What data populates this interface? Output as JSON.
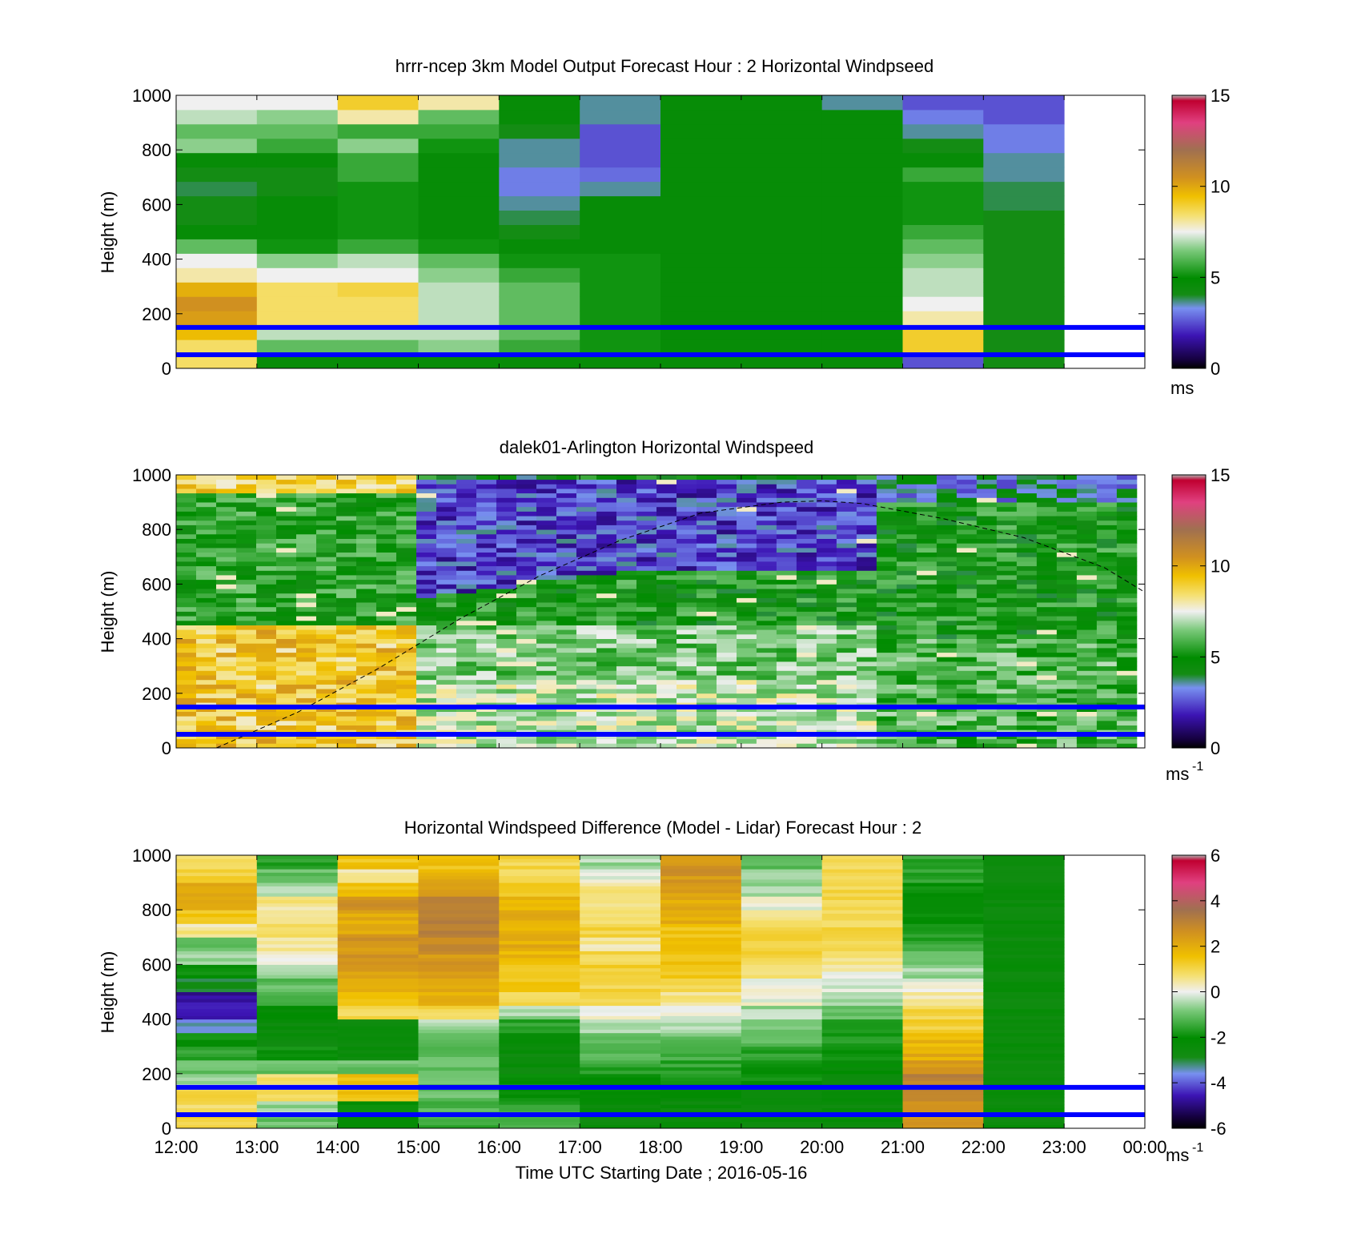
{
  "time_axis": {
    "label": "Time UTC  Starting Date ; 2016-05-16",
    "tick_labels": [
      "12:00",
      "13:00",
      "14:00",
      "15:00",
      "16:00",
      "17:00",
      "18:00",
      "19:00",
      "20:00",
      "21:00",
      "22:00",
      "23:00",
      "00:00"
    ]
  },
  "height_axis": {
    "label": "Height (m)",
    "tick_labels": [
      "0",
      "200",
      "400",
      "600",
      "800",
      "1000"
    ]
  },
  "reference_lines_m": [
    50,
    150
  ],
  "reference_line_color": "#0000ff",
  "colormap_colors": [
    "#8c8c8c",
    "#14003c",
    "#3c14b4",
    "#7890f0",
    "#148c14",
    "#008c00",
    "#78c878",
    "#f0f0f0",
    "#f0c000",
    "#d09020",
    "#a07050",
    "#e04080",
    "#b0b0b0"
  ],
  "chart_data": [
    {
      "type": "heatmap",
      "title": "hrrr-ncep 3km Model Output   Forecast Hour : 2 Horizontal Windpseed",
      "xlabel": "",
      "ylabel": "Height (m)",
      "xlim": [
        12,
        24
      ],
      "ylim": [
        0,
        1000
      ],
      "colorbar": {
        "range": [
          0,
          15
        ],
        "ticks": [
          "0",
          "5",
          "10",
          "15"
        ],
        "unit": "ms"
      },
      "description_values": {
        "x_start_hours": [
          12,
          13,
          14,
          15,
          16,
          17,
          18,
          19,
          20,
          21,
          22
        ],
        "data_end_hour": 23,
        "columns_ms_low_to_high": [
          [
            8.5,
            8.5,
            9.5,
            10.2,
            10.5,
            9.8,
            8.0,
            7.5,
            6.0,
            4.5,
            4.0,
            4.0,
            3.8,
            4.0,
            4.5,
            6.5,
            6.0,
            7.0,
            7.5
          ],
          [
            4.5,
            6.0,
            7.0,
            8.5,
            8.5,
            8.5,
            7.5,
            6.5,
            5.0,
            4.5,
            4.5,
            4.5,
            4.0,
            4.0,
            4.5,
            5.5,
            6.0,
            6.5,
            7.5
          ],
          [
            4.5,
            6.0,
            7.0,
            8.5,
            8.5,
            8.8,
            7.5,
            7.0,
            5.5,
            5.0,
            5.0,
            5.0,
            5.0,
            5.5,
            5.5,
            6.5,
            5.5,
            8.0,
            9.0
          ],
          [
            4.5,
            6.5,
            7.0,
            7.0,
            7.0,
            7.0,
            6.5,
            6.0,
            5.0,
            4.5,
            4.5,
            4.5,
            4.5,
            4.5,
            4.5,
            5.0,
            5.5,
            6.0,
            8.0
          ],
          [
            4.5,
            5.5,
            6.0,
            6.0,
            6.0,
            6.0,
            5.5,
            5.0,
            4.5,
            4.0,
            3.8,
            3.5,
            3.0,
            3.0,
            3.5,
            3.5,
            4.0,
            4.5,
            4.5
          ],
          [
            4.5,
            5.0,
            5.0,
            5.0,
            5.0,
            5.0,
            5.0,
            5.0,
            4.5,
            4.5,
            4.5,
            4.5,
            3.5,
            2.8,
            2.5,
            2.5,
            2.5,
            3.5,
            3.5
          ],
          [
            4.5,
            4.5,
            4.5,
            4.5,
            4.5,
            4.5,
            4.5,
            4.5,
            4.5,
            4.5,
            4.5,
            4.5,
            4.5,
            4.5,
            4.5,
            4.5,
            4.5,
            4.5,
            4.5
          ],
          [
            4.5,
            4.5,
            4.5,
            4.5,
            4.5,
            4.5,
            4.5,
            4.5,
            4.5,
            4.5,
            4.5,
            4.5,
            4.5,
            4.5,
            4.5,
            4.5,
            4.5,
            4.5,
            4.5
          ],
          [
            4.5,
            4.5,
            4.5,
            4.5,
            4.5,
            4.5,
            4.5,
            4.5,
            4.5,
            4.5,
            4.5,
            4.5,
            4.5,
            4.5,
            4.5,
            4.5,
            4.5,
            4.5,
            3.5
          ],
          [
            2.5,
            9.0,
            9.0,
            8.0,
            7.5,
            7.0,
            7.0,
            6.5,
            6.0,
            5.5,
            5.0,
            5.0,
            5.0,
            5.5,
            4.5,
            4.0,
            3.5,
            3.0,
            2.5
          ],
          [
            4.0,
            4.0,
            4.0,
            4.0,
            4.0,
            4.0,
            4.0,
            4.0,
            4.0,
            4.0,
            4.0,
            3.8,
            3.8,
            3.5,
            3.5,
            3.0,
            3.0,
            2.5,
            2.5
          ]
        ]
      }
    },
    {
      "type": "heatmap",
      "title": "dalek01-Arlington  Horizontal Windspeed",
      "xlabel": "",
      "ylabel": "Height (m)",
      "xlim": [
        12,
        24
      ],
      "ylim": [
        0,
        1000
      ],
      "colorbar": {
        "range": [
          0,
          15
        ],
        "ticks": [
          "0",
          "5",
          "10",
          "15"
        ],
        "unit": "ms",
        "unit_exponent": "-1"
      },
      "overlay_curve": {
        "style": "dashed",
        "color": "#000000",
        "x_hours": [
          12.5,
          13.5,
          14.5,
          15.5,
          16.5,
          17.5,
          18.5,
          19.5,
          20.0,
          20.5,
          21.5,
          22.5,
          23.5,
          24.0
        ],
        "height_m": [
          0,
          130,
          290,
          470,
          630,
          760,
          860,
          900,
          905,
          895,
          840,
          770,
          660,
          570
        ]
      },
      "description_values": {
        "x_range_hours": [
          12,
          23.9
        ],
        "note": "lidar windspeed profile, 48 columns"
      }
    },
    {
      "type": "heatmap",
      "title": "Horizontal Windspeed Difference (Model - Lidar) Forecast Hour : 2",
      "xlabel": "Time UTC  Starting Date ; 2016-05-16",
      "ylabel": "Height (m)",
      "xlim": [
        12,
        24
      ],
      "ylim": [
        0,
        1000
      ],
      "colorbar": {
        "range": [
          -6,
          6
        ],
        "ticks": [
          "-6",
          "-4",
          "-2",
          "0",
          "2",
          "4",
          "6"
        ],
        "unit": "ms",
        "unit_exponent": "-1"
      },
      "description_values": {
        "x_start_hours": [
          12,
          13,
          14,
          15,
          16,
          17,
          18,
          19,
          20,
          21,
          22
        ],
        "data_end_hour": 23,
        "columns_ms_low_to_high": [
          [
            1.0,
            0.8,
            1.0,
            -0.5,
            -1.0,
            -1.5,
            -2.0,
            -3.5,
            -4.5,
            -4.8,
            -3.0,
            -2.0,
            -0.5,
            -1.0,
            0.5,
            1.5,
            2.2,
            2.0,
            1.2,
            0.8
          ],
          [
            -1.0,
            -0.5,
            0.8,
            0.6,
            -1.0,
            -2.0,
            -2.5,
            -2.5,
            -2.0,
            -1.5,
            -1.0,
            -0.5,
            0.0,
            0.5,
            0.8,
            0.6,
            0.5,
            -0.5,
            -1.0,
            -1.5
          ],
          [
            -2.0,
            -2.0,
            1.5,
            1.5,
            -1.0,
            -2.5,
            -2.5,
            -2.5,
            1.0,
            1.5,
            2.0,
            2.2,
            2.5,
            2.5,
            2.2,
            2.0,
            2.5,
            1.5,
            0.5,
            1.5
          ],
          [
            -1.5,
            -1.2,
            -1.0,
            -1.0,
            -1.0,
            -1.0,
            -1.0,
            -0.5,
            1.0,
            2.0,
            2.0,
            2.5,
            2.5,
            2.8,
            3.0,
            3.0,
            3.0,
            2.5,
            2.0,
            1.5
          ],
          [
            -1.5,
            -1.5,
            -2.0,
            -2.0,
            -2.5,
            -2.5,
            -2.5,
            -1.5,
            -0.5,
            1.0,
            1.5,
            1.5,
            1.8,
            2.0,
            2.0,
            2.0,
            1.8,
            1.5,
            1.0,
            1.0
          ],
          [
            -2.5,
            -2.5,
            -2.0,
            -2.0,
            -1.5,
            -1.2,
            -1.0,
            -0.5,
            0.0,
            0.8,
            1.0,
            1.2,
            1.0,
            0.5,
            1.0,
            0.8,
            0.5,
            0.5,
            0.0,
            -0.5
          ],
          [
            -2.5,
            -2.5,
            -2.0,
            -1.8,
            -1.5,
            -1.2,
            -1.0,
            -0.5,
            0.0,
            0.5,
            1.0,
            1.5,
            1.5,
            1.5,
            1.5,
            2.0,
            2.0,
            2.2,
            2.5,
            2.5
          ],
          [
            -2.5,
            -2.5,
            -2.5,
            -2.0,
            -2.0,
            -1.5,
            -1.2,
            -0.8,
            -0.5,
            0.0,
            0.0,
            0.5,
            1.0,
            1.0,
            1.0,
            0.5,
            0.0,
            -0.5,
            -0.5,
            -1.0
          ],
          [
            -2.5,
            -2.5,
            -2.5,
            -2.5,
            -2.2,
            -2.0,
            -1.8,
            -1.5,
            -1.0,
            -0.5,
            -0.2,
            0.2,
            0.5,
            0.8,
            1.0,
            1.0,
            1.0,
            1.0,
            1.0,
            1.0
          ],
          [
            2.5,
            2.5,
            3.0,
            3.0,
            2.5,
            2.0,
            1.8,
            1.2,
            1.0,
            0.5,
            0.0,
            -0.5,
            -1.0,
            -1.5,
            -1.5,
            -2.0,
            -2.0,
            -2.0,
            -1.5,
            -1.5
          ],
          [
            -2.5,
            -2.5,
            -2.5,
            -2.5,
            -2.5,
            -2.5,
            -2.5,
            -2.5,
            -2.5,
            -2.5,
            -2.5,
            -2.5,
            -2.5,
            -2.5,
            -2.5,
            -2.5,
            -2.5,
            -2.5,
            -2.5,
            -2.5
          ]
        ]
      }
    }
  ]
}
